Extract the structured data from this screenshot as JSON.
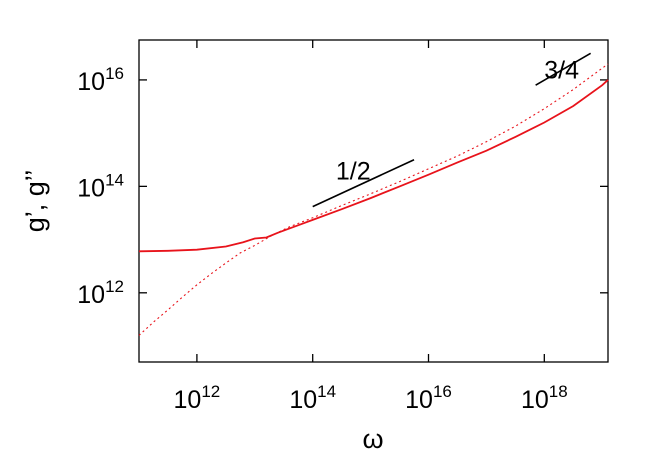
{
  "chart_data": {
    "type": "line",
    "title": "",
    "xlabel": "ω",
    "ylabel": "g’, g’’",
    "xscale": "log",
    "yscale": "log",
    "xlim_exp": [
      11,
      19.1
    ],
    "ylim_exp": [
      10.7,
      16.75
    ],
    "grid": false,
    "legend": "none",
    "x_ticks": [
      {
        "base": "10",
        "exp": "12",
        "value_exp": 12
      },
      {
        "base": "10",
        "exp": "14",
        "value_exp": 14
      },
      {
        "base": "10",
        "exp": "16",
        "value_exp": 16
      },
      {
        "base": "10",
        "exp": "18",
        "value_exp": 18
      }
    ],
    "y_ticks": [
      {
        "base": "10",
        "exp": "12",
        "value_exp": 12
      },
      {
        "base": "10",
        "exp": "14",
        "value_exp": 14
      },
      {
        "base": "10",
        "exp": "16",
        "value_exp": 16
      }
    ],
    "series": [
      {
        "style": "solid",
        "color": "#e8131b",
        "points_log10": [
          [
            11.0,
            12.78
          ],
          [
            11.5,
            12.79
          ],
          [
            12.0,
            12.81
          ],
          [
            12.5,
            12.87
          ],
          [
            12.8,
            12.95
          ],
          [
            13.0,
            13.02
          ],
          [
            13.2,
            13.04
          ],
          [
            13.4,
            13.13
          ],
          [
            13.8,
            13.29
          ],
          [
            14.0,
            13.37
          ],
          [
            14.5,
            13.57
          ],
          [
            15.0,
            13.78
          ],
          [
            15.5,
            14.0
          ],
          [
            16.0,
            14.22
          ],
          [
            16.5,
            14.45
          ],
          [
            17.0,
            14.67
          ],
          [
            17.5,
            14.93
          ],
          [
            18.0,
            15.2
          ],
          [
            18.5,
            15.51
          ],
          [
            19.0,
            15.9
          ],
          [
            19.1,
            16.0
          ]
        ]
      },
      {
        "style": "dotted",
        "color": "#e8131b",
        "points_log10": [
          [
            11.0,
            11.2
          ],
          [
            11.25,
            11.45
          ],
          [
            11.5,
            11.68
          ],
          [
            11.75,
            11.92
          ],
          [
            12.0,
            12.15
          ],
          [
            12.25,
            12.36
          ],
          [
            12.5,
            12.56
          ],
          [
            12.75,
            12.75
          ],
          [
            13.0,
            12.89
          ],
          [
            13.3,
            13.08
          ],
          [
            13.6,
            13.24
          ],
          [
            14.0,
            13.41
          ],
          [
            14.5,
            13.64
          ],
          [
            15.0,
            13.86
          ],
          [
            15.5,
            14.09
          ],
          [
            16.0,
            14.33
          ],
          [
            16.5,
            14.57
          ],
          [
            17.0,
            14.84
          ],
          [
            17.5,
            15.13
          ],
          [
            18.0,
            15.46
          ],
          [
            18.5,
            15.82
          ],
          [
            19.0,
            16.22
          ],
          [
            19.1,
            16.3
          ]
        ]
      }
    ],
    "annotations": [
      {
        "label": "1/2",
        "label_x_exp": 14.7,
        "label_y_exp": 14.3,
        "line": [
          [
            14.0,
            13.62
          ],
          [
            15.75,
            14.5
          ]
        ]
      },
      {
        "label": "3/4",
        "label_x_exp": 18.3,
        "label_y_exp": 16.2,
        "line": [
          [
            17.85,
            15.9
          ],
          [
            18.8,
            16.5
          ]
        ]
      }
    ]
  }
}
